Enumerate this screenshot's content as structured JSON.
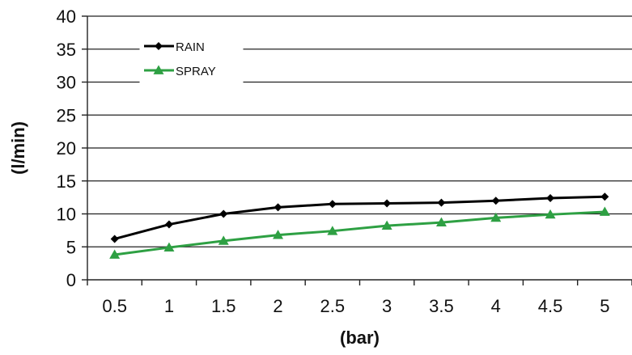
{
  "chart_data": {
    "type": "line",
    "title": "",
    "xlabel": "(bar)",
    "ylabel": "(l/min)",
    "x": [
      0.5,
      1,
      1.5,
      2,
      2.5,
      3,
      3.5,
      4,
      4.5,
      5
    ],
    "x_tick_labels": [
      "0.5",
      "1",
      "1.5",
      "2",
      "2.5",
      "3",
      "3.5",
      "4",
      "4.5",
      "5"
    ],
    "y_ticks": [
      0,
      5,
      10,
      15,
      20,
      25,
      30,
      35,
      40
    ],
    "y_tick_labels": [
      "0",
      "5",
      "10",
      "15",
      "20",
      "25",
      "30",
      "35",
      "40"
    ],
    "ylim": [
      0,
      40
    ],
    "grid": true,
    "legend_position": "top-left",
    "series": [
      {
        "name": "RAIN",
        "color": "#000000",
        "marker": "diamond",
        "values": [
          6.2,
          8.4,
          10.0,
          11.0,
          11.5,
          11.6,
          11.7,
          12.0,
          12.4,
          12.6
        ]
      },
      {
        "name": "SPRAY",
        "color": "#2ea043",
        "marker": "triangle",
        "values": [
          3.8,
          4.9,
          5.9,
          6.8,
          7.4,
          8.2,
          8.7,
          9.4,
          9.9,
          10.3
        ]
      }
    ]
  }
}
